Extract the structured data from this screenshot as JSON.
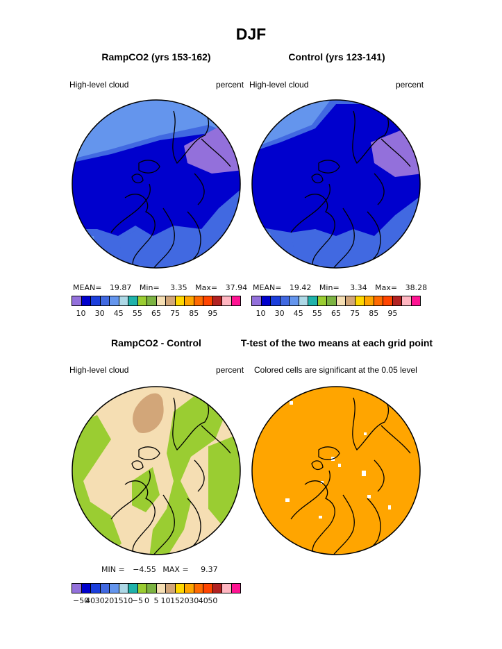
{
  "title": "DJF",
  "panels": [
    {
      "title": "RampCO2 (yrs 153-162)",
      "left_label": "High-level cloud",
      "right_label": "percent",
      "stats": {
        "mean_label": "MEAN=",
        "mean": "19.87",
        "min_label": "Min=",
        "min": "3.35",
        "max_label": "Max=",
        "max": "37.94"
      }
    },
    {
      "title": "Control (yrs 123-141)",
      "left_label": "High-level cloud",
      "right_label": "percent",
      "stats": {
        "mean_label": "MEAN=",
        "mean": "19.42",
        "min_label": "Min=",
        "min": "3.34",
        "max_label": "Max=",
        "max": "38.28"
      }
    },
    {
      "title": "RampCO2 - Control",
      "left_label": "High-level cloud",
      "right_label": "percent",
      "stats": {
        "min_label": "MIN =",
        "min": "−4.55",
        "max_label": "MAX =",
        "max": "9.37"
      }
    },
    {
      "title": "T-test of the two means at each grid point",
      "left_label": "Colored cells are significant at the 0.05 level"
    }
  ],
  "colorbar_abs": {
    "colors": [
      "#9370db",
      "#0000cd",
      "#1c3fdc",
      "#4169e1",
      "#6495ed",
      "#add8e6",
      "#20b2aa",
      "#9acd32",
      "#7cb342",
      "#f5deb3",
      "#d2a679",
      "#ffd700",
      "#ffa500",
      "#ff6a00",
      "#ff4500",
      "#b22222",
      "#ffb6c1",
      "#ff1493"
    ],
    "ticks": [
      "10",
      "30",
      "45",
      "55",
      "65",
      "75",
      "85",
      "95"
    ]
  },
  "colorbar_diff": {
    "colors": [
      "#9370db",
      "#0000cd",
      "#1c3fdc",
      "#4169e1",
      "#6495ed",
      "#add8e6",
      "#20b2aa",
      "#9acd32",
      "#7cb342",
      "#f5deb3",
      "#d2a679",
      "#ffd700",
      "#ffa500",
      "#ff6a00",
      "#ff4500",
      "#b22222",
      "#ffb6c1",
      "#ff1493"
    ],
    "ticks": [
      "−50",
      "40",
      "30",
      "20",
      "15",
      "10",
      "−5",
      "0",
      "5",
      "10",
      "15",
      "20",
      "30",
      "40",
      "50"
    ]
  },
  "map_colors": {
    "violet": "#9370db",
    "medium_blue": "#0000cd",
    "royal_blue": "#4169e1",
    "cornflower": "#6495ed",
    "wheat": "#f5deb3",
    "tan": "#d2a679",
    "green": "#9acd32",
    "orange": "#ffa500"
  }
}
